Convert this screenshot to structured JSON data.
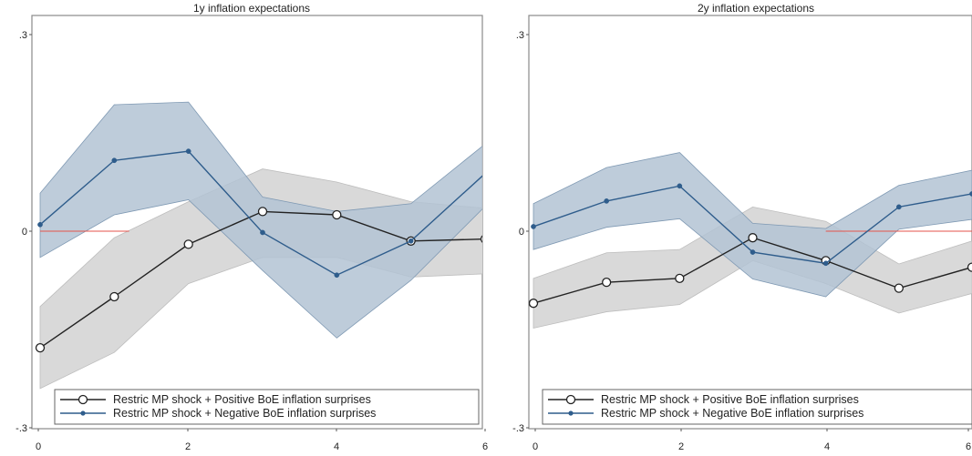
{
  "colors": {
    "positive_line": "#222222",
    "positive_band": "#d9d9d9",
    "negative_line": "#2f5d8c",
    "negative_band": "#b3c3d3",
    "zero_line": "#e5534b"
  },
  "chart_data": [
    {
      "type": "line",
      "title": "1y inflation expectations",
      "xlabel": "",
      "ylabel": "",
      "x": [
        0,
        1,
        2,
        3,
        4,
        5,
        6
      ],
      "xticks": [
        "0",
        "2",
        "4",
        "6"
      ],
      "yticks": [
        ".3",
        "0",
        "-.3"
      ],
      "xlim": [
        0,
        6
      ],
      "ylim": [
        -0.3,
        0.3
      ],
      "zero_line": {
        "y": 0,
        "x_range": [
          0,
          1.2
        ]
      },
      "legend_position": "bottom",
      "series": [
        {
          "name": "Restric MP shock + Positive BoE inflation surprises",
          "marker": "hollow-circle",
          "values": [
            -0.178,
            -0.1,
            -0.02,
            0.03,
            0.025,
            -0.015,
            -0.012
          ],
          "lower": [
            -0.24,
            -0.185,
            -0.08,
            -0.04,
            -0.04,
            -0.07,
            -0.065
          ],
          "upper": [
            -0.115,
            -0.01,
            0.045,
            0.095,
            0.075,
            0.045,
            0.035
          ]
        },
        {
          "name": "Restric MP shock + Negative BoE inflation surprises",
          "marker": "filled-dot",
          "values": [
            0.01,
            0.108,
            0.122,
            -0.002,
            -0.067,
            -0.015,
            0.088
          ],
          "lower": [
            -0.04,
            0.025,
            0.048,
            -0.06,
            -0.163,
            -0.075,
            0.038
          ],
          "upper": [
            0.058,
            0.193,
            0.197,
            0.052,
            0.03,
            0.042,
            0.133
          ]
        }
      ]
    },
    {
      "type": "line",
      "title": "2y inflation expectations",
      "xlabel": "",
      "ylabel": "",
      "x": [
        0,
        1,
        2,
        3,
        4,
        5,
        6
      ],
      "xticks": [
        "0",
        "2",
        "4",
        "6"
      ],
      "yticks": [
        ".3",
        "0",
        "-.3"
      ],
      "xlim": [
        0,
        6
      ],
      "ylim": [
        -0.3,
        0.3
      ],
      "zero_line": {
        "y": 0,
        "x_range": [
          4,
          6
        ]
      },
      "legend_position": "bottom",
      "series": [
        {
          "name": "Restric MP shock + Positive BoE inflation surprises",
          "marker": "hollow-circle",
          "values": [
            -0.11,
            -0.078,
            -0.072,
            -0.01,
            -0.045,
            -0.087,
            -0.055
          ],
          "lower": [
            -0.148,
            -0.123,
            -0.112,
            -0.045,
            -0.08,
            -0.125,
            -0.095
          ],
          "upper": [
            -0.072,
            -0.033,
            -0.028,
            0.037,
            0.015,
            -0.05,
            -0.015
          ]
        },
        {
          "name": "Restric MP shock + Negative BoE inflation surprises",
          "marker": "filled-dot",
          "values": [
            0.007,
            0.046,
            0.069,
            -0.032,
            -0.049,
            0.037,
            0.057
          ],
          "lower": [
            -0.028,
            0.006,
            0.019,
            -0.073,
            -0.1,
            0.003,
            0.018
          ],
          "upper": [
            0.042,
            0.097,
            0.12,
            0.012,
            0.004,
            0.07,
            0.093
          ]
        }
      ]
    }
  ]
}
